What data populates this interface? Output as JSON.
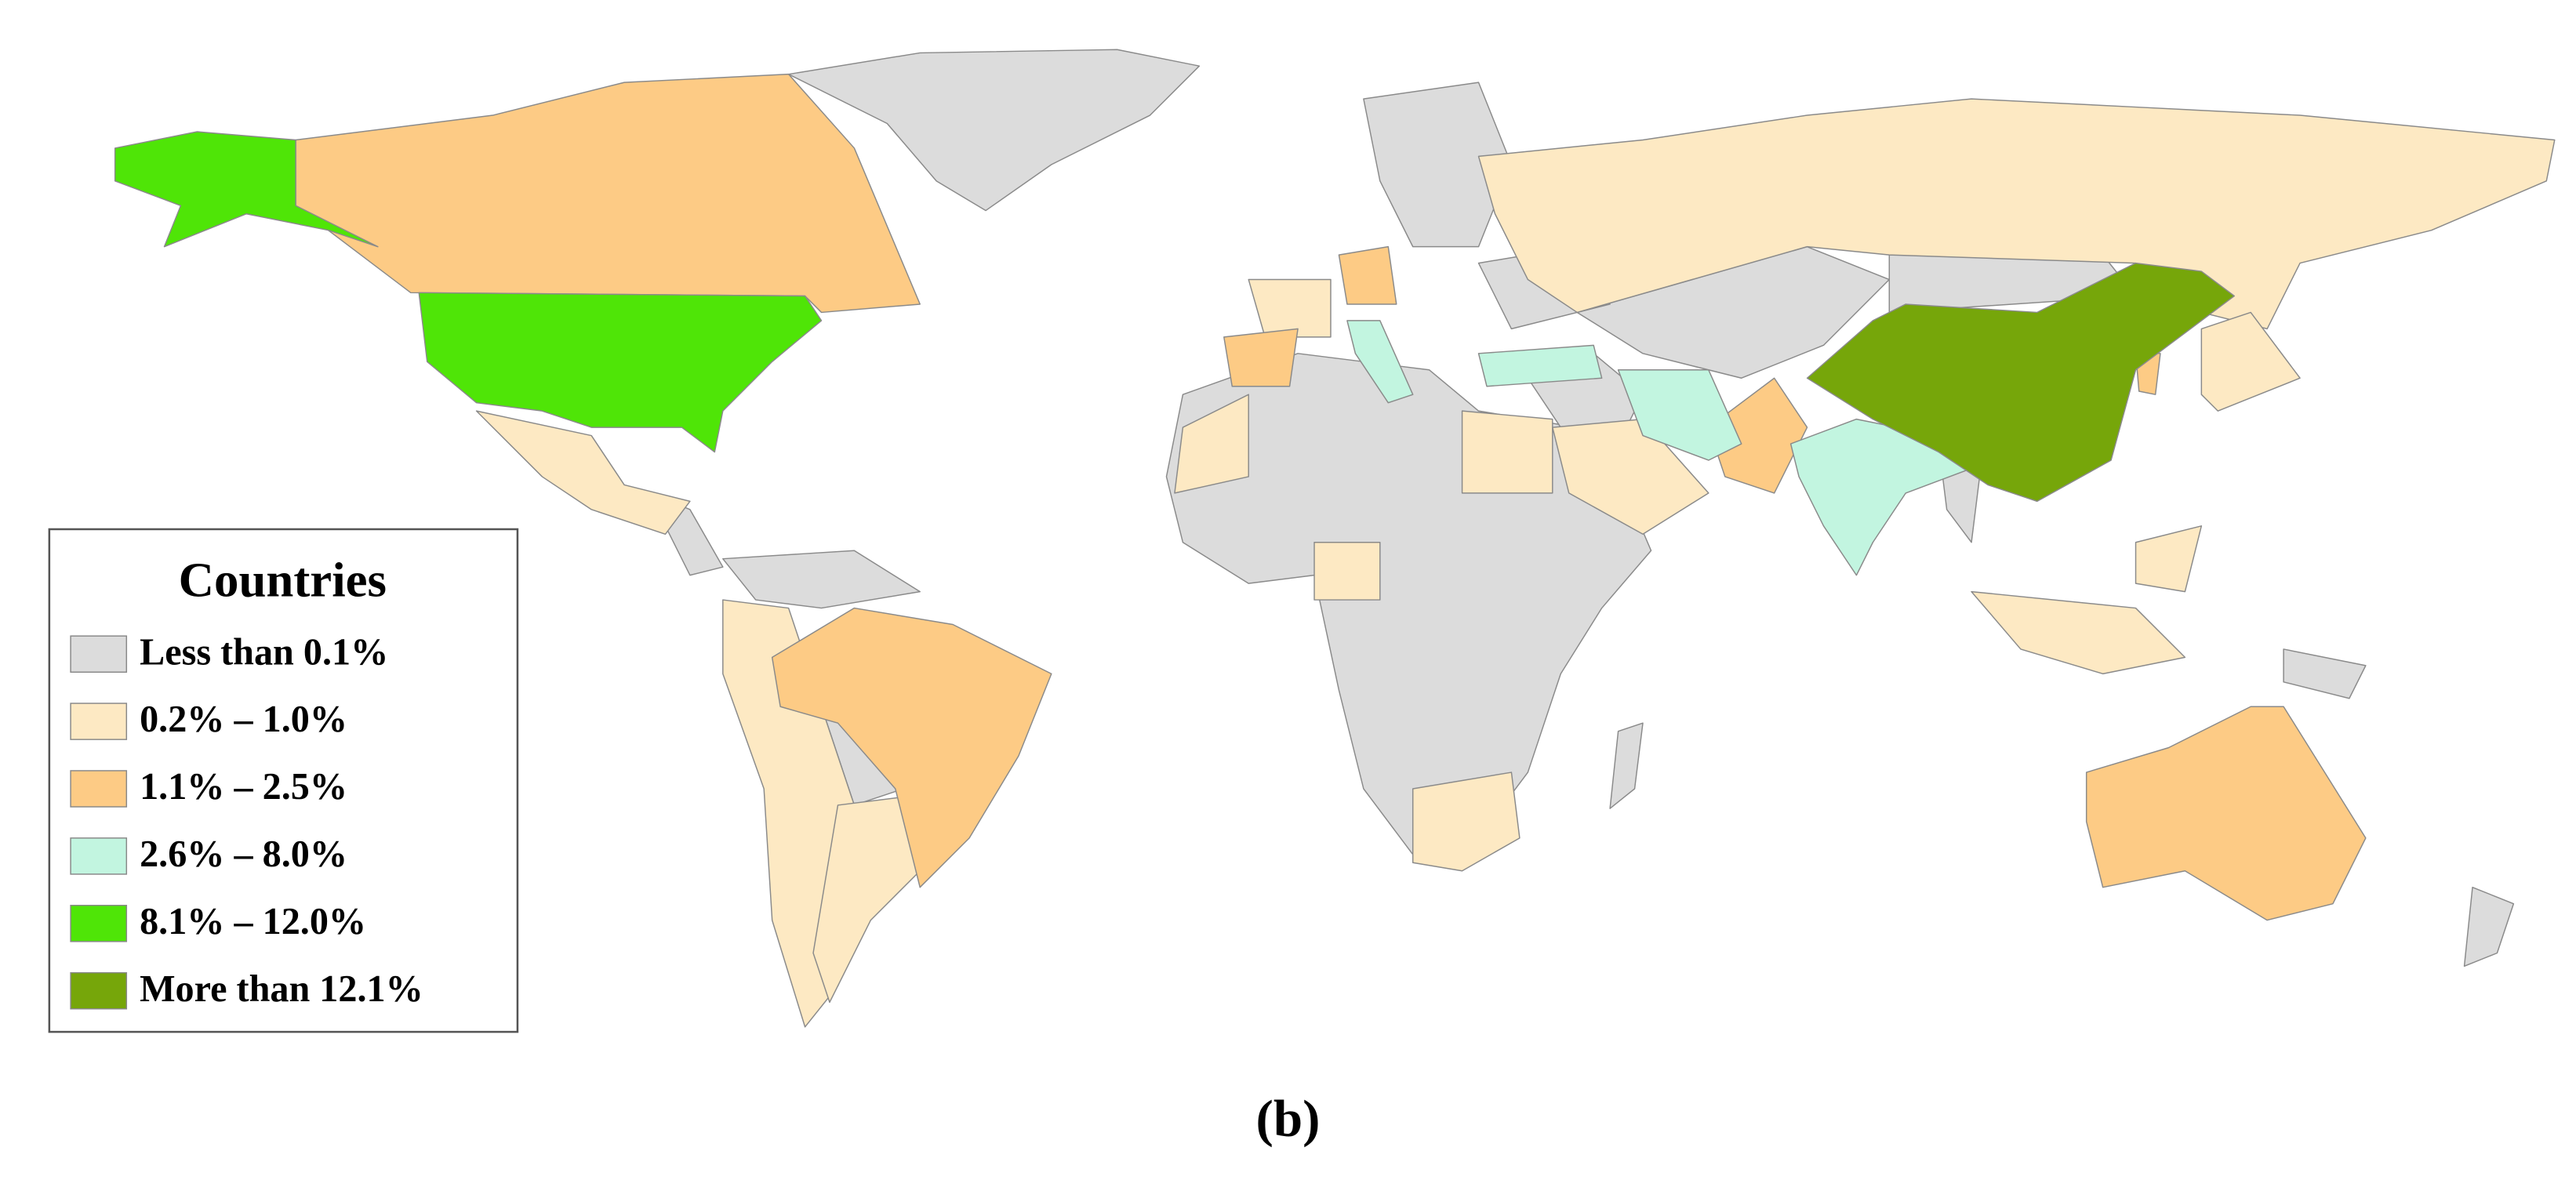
{
  "legend": {
    "title": "Countries",
    "items": [
      {
        "label": "Less than 0.1%",
        "color": "#dcdcdc"
      },
      {
        "label": "0.2% – 1.0%",
        "color": "#fde9c3"
      },
      {
        "label": "1.1% – 2.5%",
        "color": "#fdcb85"
      },
      {
        "label": "2.6% – 8.0%",
        "color": "#c2f5e0"
      },
      {
        "label": "8.1% – 12.0%",
        "color": "#4fe507"
      },
      {
        "label": "More than 12.1%",
        "color": "#76a60a"
      }
    ]
  },
  "caption": "(b)"
}
